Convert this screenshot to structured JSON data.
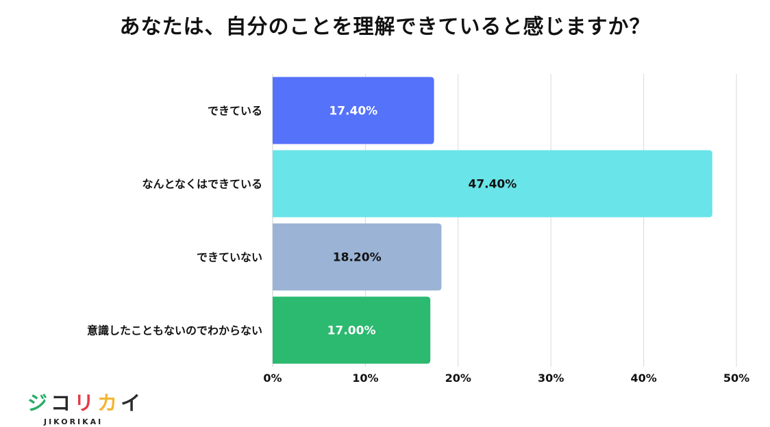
{
  "title": "あなたは、自分のことを理解できていると感じますか？",
  "chart_data": {
    "type": "bar",
    "orientation": "horizontal",
    "categories": [
      "できている",
      "なんとなくはできている",
      "できていない",
      "意識したこともないのでわからない"
    ],
    "values": [
      17.4,
      47.4,
      18.2,
      17.0
    ],
    "data_labels": [
      "17.40%",
      "47.40%",
      "18.20%",
      "17.00%"
    ],
    "colors": [
      "#5572fb",
      "#69e4e8",
      "#9bb3d5",
      "#2cb970"
    ],
    "label_colors": [
      "#ffffff",
      "#111111",
      "#111111",
      "#ffffff"
    ],
    "xlim": [
      0,
      50
    ],
    "ticks": [
      0,
      10,
      20,
      30,
      40,
      50
    ],
    "tick_labels": [
      "0%",
      "10%",
      "20%",
      "30%",
      "40%",
      "50%"
    ],
    "grid": true
  },
  "logo": {
    "chars": [
      "ジ",
      "コ",
      "リ",
      "カ",
      "イ"
    ],
    "char_colors": [
      "#26ad68",
      "#2a2a2a",
      "#e63946",
      "#f2b632",
      "#2a2a2a"
    ],
    "subtitle": "JIKORIKAI"
  }
}
